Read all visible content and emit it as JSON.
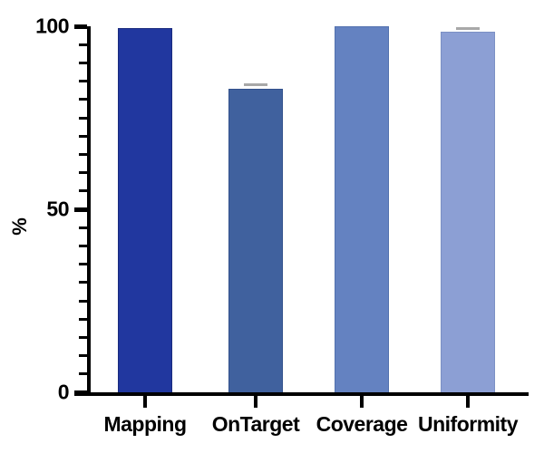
{
  "page": {
    "background": "#ffffff"
  },
  "chart_data": {
    "type": "bar",
    "title": "",
    "categories": [
      "Mapping",
      "OnTarget",
      "Coverage",
      "Uniformity"
    ],
    "values": [
      99.5,
      83,
      100,
      98.5
    ],
    "bars": [
      {
        "label": "Mapping",
        "value": 99.5,
        "color": "#21379f",
        "border_color": "#1a2b7e",
        "error_cap_value": null
      },
      {
        "label": "OnTarget",
        "value": 83,
        "color": "#40619e",
        "border_color": "#32518c",
        "error_cap_value": 84
      },
      {
        "label": "Coverage",
        "value": 100,
        "color": "#6482c1",
        "border_color": "#5271ae",
        "error_cap_value": null
      },
      {
        "label": "Uniformity",
        "value": 98.5,
        "color": "#8c9fd4",
        "border_color": "#7b90c4",
        "error_cap_value": 99.5
      }
    ],
    "xlabel": "",
    "ylabel": "%",
    "ylim": [
      0,
      100
    ],
    "yticks": [
      0,
      50,
      100
    ],
    "ytick_labels": [
      "0",
      "50",
      "100"
    ],
    "minor_tick_interval": 5,
    "grid": false,
    "legend": null,
    "axis_color": "#000000",
    "error_cap_color": "#a8a8a8",
    "background": "#ffffff"
  }
}
